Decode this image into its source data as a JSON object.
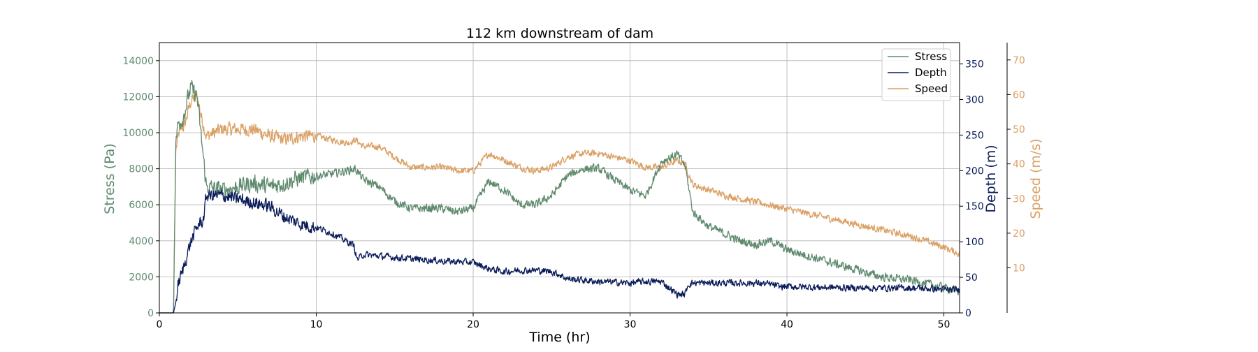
{
  "chart_data": {
    "type": "line",
    "title": "112 km downstream of dam",
    "xlabel": "Time (hr)",
    "xlim": [
      0,
      51
    ],
    "xticks": [
      0,
      10,
      20,
      30,
      40,
      50
    ],
    "grid": true,
    "legend_position": "top-right",
    "axes": {
      "stress": {
        "label": "Stress (Pa)",
        "ylim": [
          0,
          15000
        ],
        "ticks": [
          0,
          2000,
          4000,
          6000,
          8000,
          10000,
          12000,
          14000
        ],
        "color": "#5f8a6e"
      },
      "depth": {
        "label": "Depth (m)",
        "ylim": [
          0,
          380
        ],
        "ticks": [
          0,
          50,
          100,
          150,
          200,
          250,
          300,
          350
        ],
        "color": "#0b1c5a"
      },
      "speed": {
        "label": "Speed (m/s)",
        "ylim": [
          -3,
          75
        ],
        "ticks": [
          10,
          20,
          30,
          40,
          50,
          60,
          70
        ],
        "color": "#dba064"
      }
    },
    "series": [
      {
        "name": "Stress",
        "axis": "stress",
        "color": "#5f8a6e",
        "noise": 600,
        "x": [
          0,
          0.9,
          1.05,
          1.2,
          1.5,
          2.0,
          2.4,
          2.7,
          3.0,
          4.0,
          5.0,
          6.0,
          7.0,
          8.0,
          9.0,
          10.0,
          11.0,
          12.0,
          12.5,
          13.0,
          14.0,
          15.0,
          16.0,
          18.0,
          19.0,
          20.0,
          21.0,
          22.0,
          23.0,
          24.0,
          25.0,
          26.0,
          27.0,
          28.0,
          29.0,
          30.0,
          31.0,
          32.0,
          33.0,
          33.5,
          34.0,
          35.0,
          36.0,
          37.0,
          38.0,
          39.0,
          40.0,
          42.0,
          44.0,
          46.0,
          48.0,
          50.0,
          51.0
        ],
        "values": [
          0,
          0,
          9500,
          10500,
          10800,
          12500,
          12000,
          9500,
          7000,
          6800,
          7000,
          7200,
          7000,
          7200,
          7500,
          7600,
          7700,
          7900,
          8000,
          7400,
          7000,
          6200,
          5800,
          5800,
          5600,
          5800,
          7300,
          6800,
          6000,
          6000,
          6500,
          7600,
          8000,
          8000,
          7400,
          6800,
          6500,
          8400,
          8800,
          8200,
          5600,
          4800,
          4400,
          4000,
          3800,
          4000,
          3500,
          3000,
          2500,
          2000,
          1800,
          1400,
          1200
        ]
      },
      {
        "name": "Depth",
        "axis": "depth",
        "color": "#0b1c5a",
        "noise": 12,
        "x": [
          0,
          0.9,
          1.05,
          1.2,
          1.5,
          2.0,
          2.5,
          2.8,
          3.0,
          4.0,
          5.0,
          6.0,
          7.0,
          8.0,
          9.0,
          10.0,
          11.0,
          12.0,
          12.4,
          12.6,
          13.0,
          14.0,
          15.0,
          16.0,
          18.0,
          20.0,
          21.0,
          22.0,
          23.0,
          24.0,
          25.0,
          25.5,
          26.0,
          28.0,
          30.0,
          31.0,
          32.0,
          32.5,
          33.0,
          33.5,
          33.7,
          34.0,
          36.0,
          38.0,
          39.0,
          39.5,
          40.0,
          42.0,
          45.0,
          48.0,
          50.0,
          51.0
        ],
        "values": [
          0,
          0,
          15,
          40,
          60,
          100,
          125,
          130,
          165,
          165,
          160,
          155,
          150,
          135,
          125,
          120,
          112,
          100,
          95,
          75,
          82,
          80,
          78,
          76,
          73,
          71,
          62,
          58,
          60,
          60,
          58,
          54,
          48,
          44,
          42,
          44,
          44,
          35,
          26,
          26,
          40,
          42,
          42,
          42,
          40,
          37,
          37,
          36,
          35,
          35,
          33,
          32
        ]
      },
      {
        "name": "Speed",
        "axis": "speed",
        "color": "#dba064",
        "noise": 2.5,
        "x": [
          0,
          0.9,
          1.05,
          1.3,
          1.6,
          2.0,
          2.4,
          2.7,
          3.0,
          4.0,
          5.0,
          6.0,
          7.0,
          8.0,
          9.0,
          10.0,
          11.0,
          12.0,
          12.5,
          13.0,
          14.0,
          15.0,
          16.0,
          18.0,
          19.0,
          20.0,
          21.0,
          22.0,
          23.0,
          24.0,
          25.0,
          26.0,
          27.0,
          28.0,
          29.0,
          30.0,
          31.0,
          32.0,
          33.0,
          33.5,
          34.0,
          36.0,
          38.0,
          39.0,
          40.0,
          42.0,
          44.0,
          46.0,
          48.0,
          50.0,
          51.0
        ],
        "values": [
          -3,
          -3,
          44,
          50,
          51,
          58,
          60,
          53,
          48,
          50,
          50,
          50,
          48,
          47,
          48,
          48,
          47,
          46,
          47,
          45,
          45,
          42,
          39,
          39,
          38,
          38,
          43,
          41,
          39,
          38,
          39,
          42,
          43,
          43,
          42,
          41,
          39,
          39,
          41,
          40,
          34,
          31,
          29,
          28,
          27,
          25,
          23,
          21,
          19,
          16,
          14
        ]
      }
    ]
  }
}
